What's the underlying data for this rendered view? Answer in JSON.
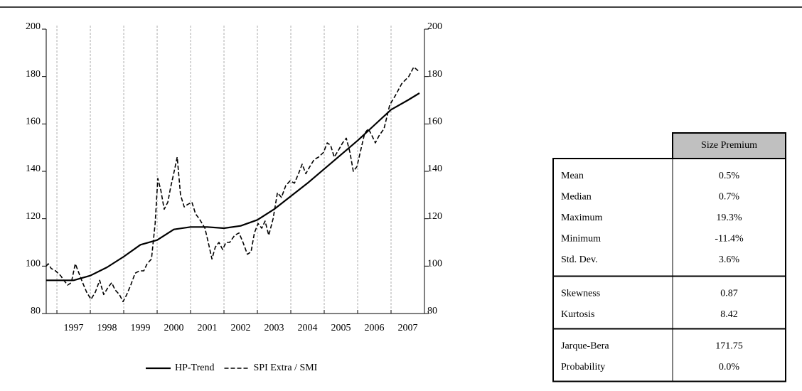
{
  "chart_data": {
    "type": "line",
    "xlim": [
      1996.68,
      2008
    ],
    "xticks": [
      1997,
      1998,
      1999,
      2000,
      2001,
      2002,
      2003,
      2004,
      2005,
      2006,
      2007
    ],
    "ylim": [
      80,
      200
    ],
    "yticks": [
      80,
      100,
      120,
      140,
      160,
      180,
      200
    ],
    "y2lim": [
      80,
      200
    ],
    "y2ticks": [
      80,
      100,
      120,
      140,
      160,
      180,
      200
    ],
    "grid": true,
    "series": [
      {
        "name": "HP-Trend",
        "color": "#000000",
        "dash": false,
        "x": [
          1996.68,
          1997,
          1997.5,
          1998,
          1998.5,
          1999,
          1999.5,
          2000,
          2000.5,
          2001,
          2001.5,
          2002,
          2002.5,
          2003,
          2003.5,
          2004,
          2004.5,
          2005,
          2005.5,
          2006,
          2006.5,
          2007,
          2007.5,
          2007.85
        ],
        "values": [
          94,
          94,
          94,
          96,
          99.5,
          104,
          109,
          111,
          115.5,
          116.5,
          116.5,
          116,
          117,
          119.5,
          124,
          129.5,
          135,
          141,
          147,
          153,
          159.5,
          166,
          170,
          173
        ]
      },
      {
        "name": "SPI Extra / SMI",
        "color": "#000000",
        "dash": true,
        "x": [
          1996.68,
          1996.74,
          1996.83,
          1996.96,
          1997.11,
          1997.21,
          1997.32,
          1997.43,
          1997.55,
          1997.66,
          1997.77,
          1997.89,
          1998.02,
          1998.15,
          1998.28,
          1998.4,
          1998.53,
          1998.64,
          1998.74,
          1998.87,
          1998.98,
          1999.09,
          1999.21,
          1999.34,
          1999.47,
          1999.6,
          1999.7,
          1999.83,
          1999.94,
          2000.02,
          2000.11,
          2000.21,
          2000.32,
          2000.4,
          2000.51,
          2000.6,
          2000.7,
          2000.81,
          2000.91,
          2001.04,
          2001.15,
          2001.26,
          2001.43,
          2001.53,
          2001.64,
          2001.74,
          2001.85,
          2001.96,
          2002.06,
          2002.17,
          2002.32,
          2002.45,
          2002.57,
          2002.7,
          2002.81,
          2002.91,
          2003.02,
          2003.13,
          2003.23,
          2003.34,
          2003.47,
          2003.6,
          2003.72,
          2003.85,
          2003.98,
          2004.11,
          2004.23,
          2004.34,
          2004.45,
          2004.57,
          2004.7,
          2004.83,
          2004.98,
          2005.09,
          2005.19,
          2005.3,
          2005.43,
          2005.55,
          2005.66,
          2005.77,
          2005.87,
          2005.98,
          2006.11,
          2006.21,
          2006.32,
          2006.43,
          2006.53,
          2006.64,
          2006.79,
          2006.96,
          2007.13,
          2007.32,
          2007.53,
          2007.68,
          2007.85
        ],
        "values": [
          100,
          101,
          99,
          98,
          96,
          94,
          92,
          93,
          101,
          97,
          93,
          89,
          86,
          89,
          94,
          88,
          91,
          93,
          90,
          88,
          85,
          88,
          92,
          97,
          98,
          98,
          101,
          103,
          118,
          137,
          132,
          124,
          127,
          133,
          140,
          146,
          130,
          125,
          126,
          127,
          122,
          120,
          116,
          110,
          103,
          108,
          110,
          107,
          110,
          110,
          113,
          114,
          110,
          105,
          106,
          114,
          118,
          116,
          119,
          113,
          120,
          131,
          129,
          134,
          136,
          135,
          139,
          143,
          139,
          142,
          145,
          146,
          148,
          152,
          151,
          146,
          149,
          152,
          154,
          148,
          140,
          142,
          150,
          156,
          158,
          155,
          152,
          155,
          158,
          168,
          172,
          177,
          180,
          184,
          182
        ]
      }
    ]
  },
  "table": {
    "column_header": "Size Premium",
    "groups": [
      [
        [
          "Mean",
          "0.5%"
        ],
        [
          "Median",
          "0.7%"
        ],
        [
          "Maximum",
          "19.3%"
        ],
        [
          "Minimum",
          "-11.4%"
        ],
        [
          "Std. Dev.",
          "3.6%"
        ]
      ],
      [
        [
          "Skewness",
          "0.87"
        ],
        [
          "Kurtosis",
          "8.42"
        ]
      ],
      [
        [
          "Jarque-Bera",
          "171.75"
        ],
        [
          "Probability",
          "0.0%"
        ]
      ]
    ]
  }
}
